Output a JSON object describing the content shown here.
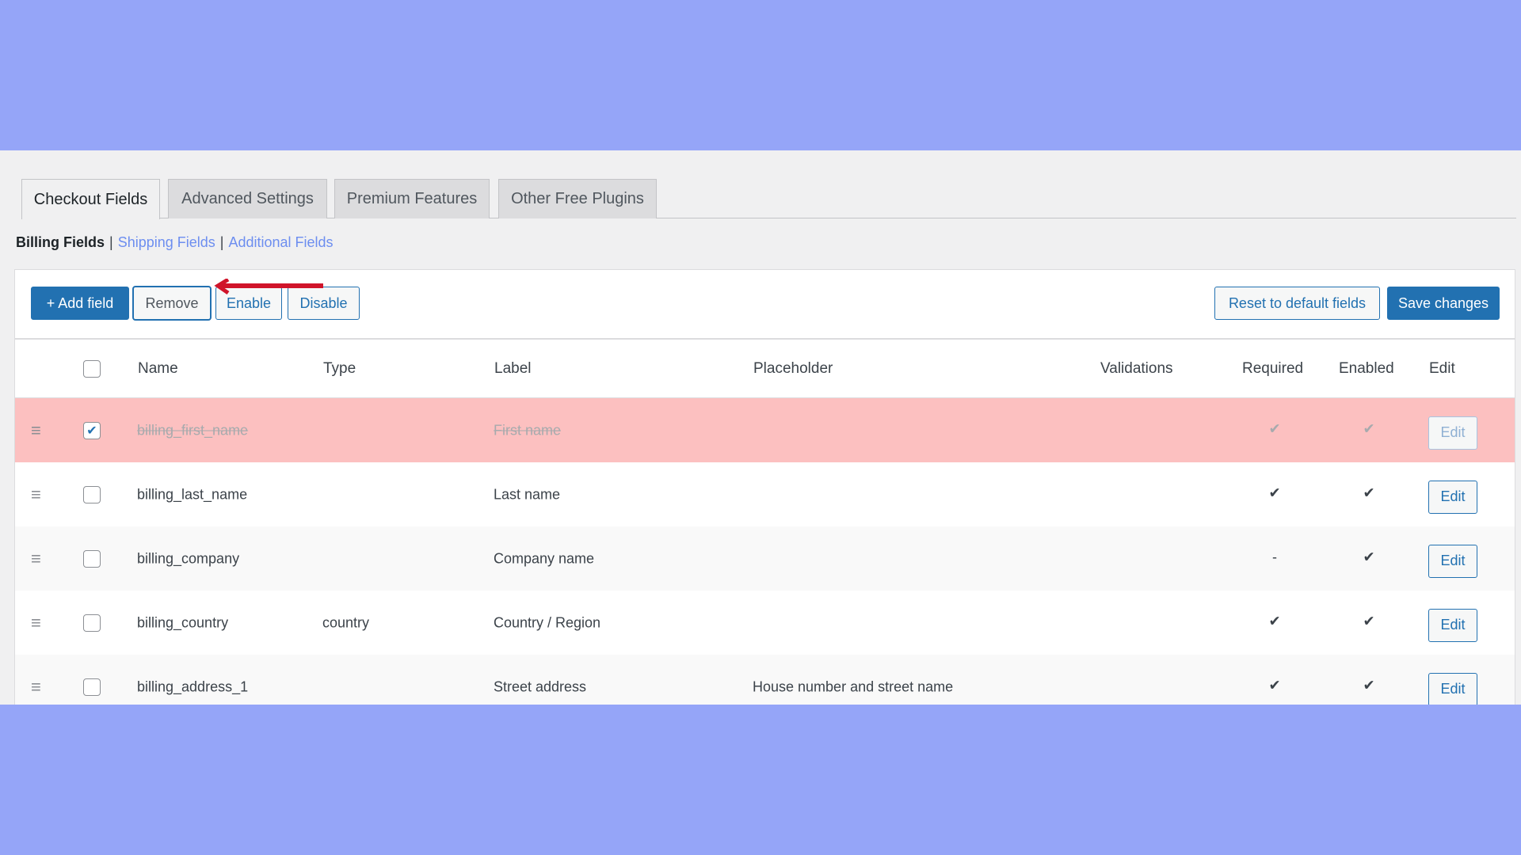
{
  "tabs": [
    {
      "label": "Checkout Fields",
      "active": true
    },
    {
      "label": "Advanced Settings"
    },
    {
      "label": "Premium Features"
    },
    {
      "label": "Other Free Plugins"
    }
  ],
  "subnav": {
    "current": "Billing Fields",
    "sep": "|",
    "links": [
      "Shipping Fields",
      "Additional Fields"
    ]
  },
  "toolbar": {
    "add": "+ Add field",
    "remove": "Remove",
    "enable": "Enable",
    "disable": "Disable",
    "reset": "Reset to default fields",
    "save": "Save changes"
  },
  "columns": {
    "name": "Name",
    "type": "Type",
    "label": "Label",
    "placeholder": "Placeholder",
    "validations": "Validations",
    "required": "Required",
    "enabled": "Enabled",
    "edit": "Edit"
  },
  "rows": [
    {
      "name": "billing_first_name",
      "type": "",
      "label": "First name",
      "placeholder": "",
      "validations": "",
      "required": "✔",
      "enabled": "✔",
      "edit": "Edit",
      "selected": true
    },
    {
      "name": "billing_last_name",
      "type": "",
      "label": "Last name",
      "placeholder": "",
      "validations": "",
      "required": "✔",
      "enabled": "✔",
      "edit": "Edit"
    },
    {
      "name": "billing_company",
      "type": "",
      "label": "Company name",
      "placeholder": "",
      "validations": "",
      "required": "-",
      "enabled": "✔",
      "edit": "Edit"
    },
    {
      "name": "billing_country",
      "type": "country",
      "label": "Country / Region",
      "placeholder": "",
      "validations": "",
      "required": "✔",
      "enabled": "✔",
      "edit": "Edit"
    },
    {
      "name": "billing_address_1",
      "type": "",
      "label": "Street address",
      "placeholder": "House number and street name",
      "validations": "",
      "required": "✔",
      "enabled": "✔",
      "edit": "Edit"
    }
  ],
  "colors": {
    "background": "#95a5f8",
    "accent": "#2271b1",
    "selected_row": "#fcc0c0",
    "arrow": "#d0142a"
  }
}
